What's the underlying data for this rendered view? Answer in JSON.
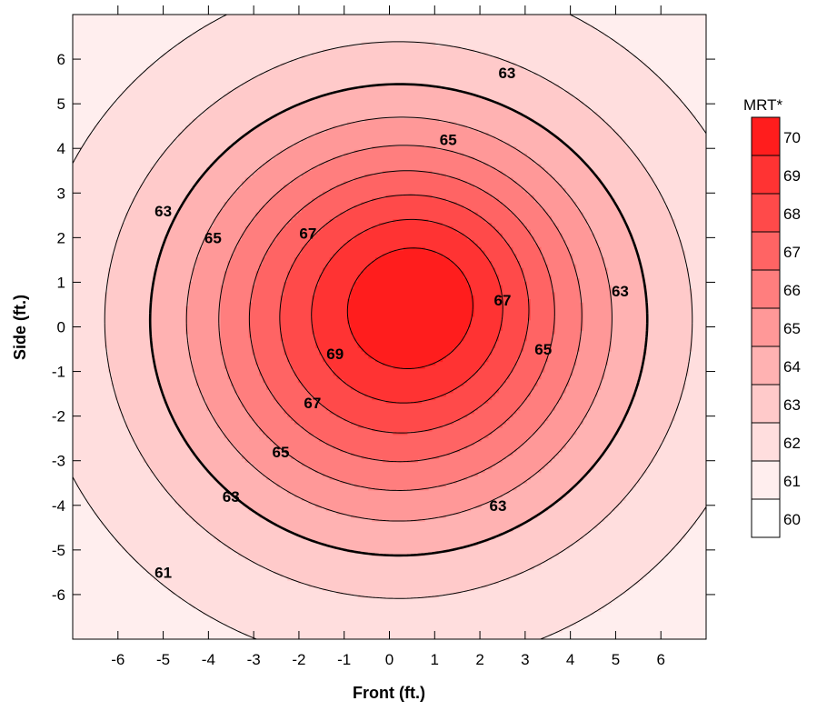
{
  "chart_data": {
    "type": "contour",
    "title": "",
    "xlabel": "Front (ft.)",
    "ylabel": "Side (ft.)",
    "xlim": [
      -7,
      7
    ],
    "ylim": [
      -7,
      7
    ],
    "xticks": [
      -6,
      -5,
      -4,
      -3,
      -2,
      -1,
      0,
      1,
      2,
      3,
      4,
      5,
      6
    ],
    "yticks": [
      6,
      5,
      4,
      3,
      2,
      1,
      0,
      -1,
      -2,
      -3,
      -4,
      -5,
      -6
    ],
    "contour_levels": [
      60,
      61,
      62,
      63,
      64,
      65,
      66,
      67,
      68,
      69,
      70
    ],
    "labeled_contours": [
      {
        "level": 63,
        "text": "63",
        "x": 2.6,
        "y": 5.7
      },
      {
        "level": 65,
        "text": "65",
        "x": 1.3,
        "y": 4.2
      },
      {
        "level": 67,
        "text": "67",
        "x": -1.8,
        "y": 2.1
      },
      {
        "level": 63,
        "text": "63",
        "x": -5.0,
        "y": 2.6
      },
      {
        "level": 65,
        "text": "65",
        "x": -3.9,
        "y": 2.0
      },
      {
        "level": 67,
        "text": "67",
        "x": 2.5,
        "y": 0.6
      },
      {
        "level": 63,
        "text": "63",
        "x": 5.1,
        "y": 0.8
      },
      {
        "level": 69,
        "text": "69",
        "x": -1.2,
        "y": -0.6
      },
      {
        "level": 65,
        "text": "65",
        "x": 3.4,
        "y": -0.5
      },
      {
        "level": 67,
        "text": "67",
        "x": -1.7,
        "y": -1.7
      },
      {
        "level": 65,
        "text": "65",
        "x": -2.4,
        "y": -2.8
      },
      {
        "level": 63,
        "text": "63",
        "x": -3.5,
        "y": -3.8
      },
      {
        "level": 63,
        "text": "63",
        "x": 2.4,
        "y": -4.0
      },
      {
        "level": 61,
        "text": "61",
        "x": -5.0,
        "y": -5.5
      }
    ],
    "peak": {
      "x": 1.0,
      "y": 1.0,
      "value": 70
    },
    "colorbar": {
      "title": "MRT*",
      "levels": [
        70,
        69,
        68,
        67,
        66,
        65,
        64,
        63,
        62,
        61,
        60
      ],
      "colors": [
        "#ff1d1d",
        "#ff3333",
        "#ff4a4a",
        "#ff6464",
        "#ff7e7e",
        "#ff9898",
        "#ffb2b2",
        "#ffcaca",
        "#ffdede",
        "#ffeeee",
        "#ffffff"
      ]
    },
    "grid": false
  }
}
